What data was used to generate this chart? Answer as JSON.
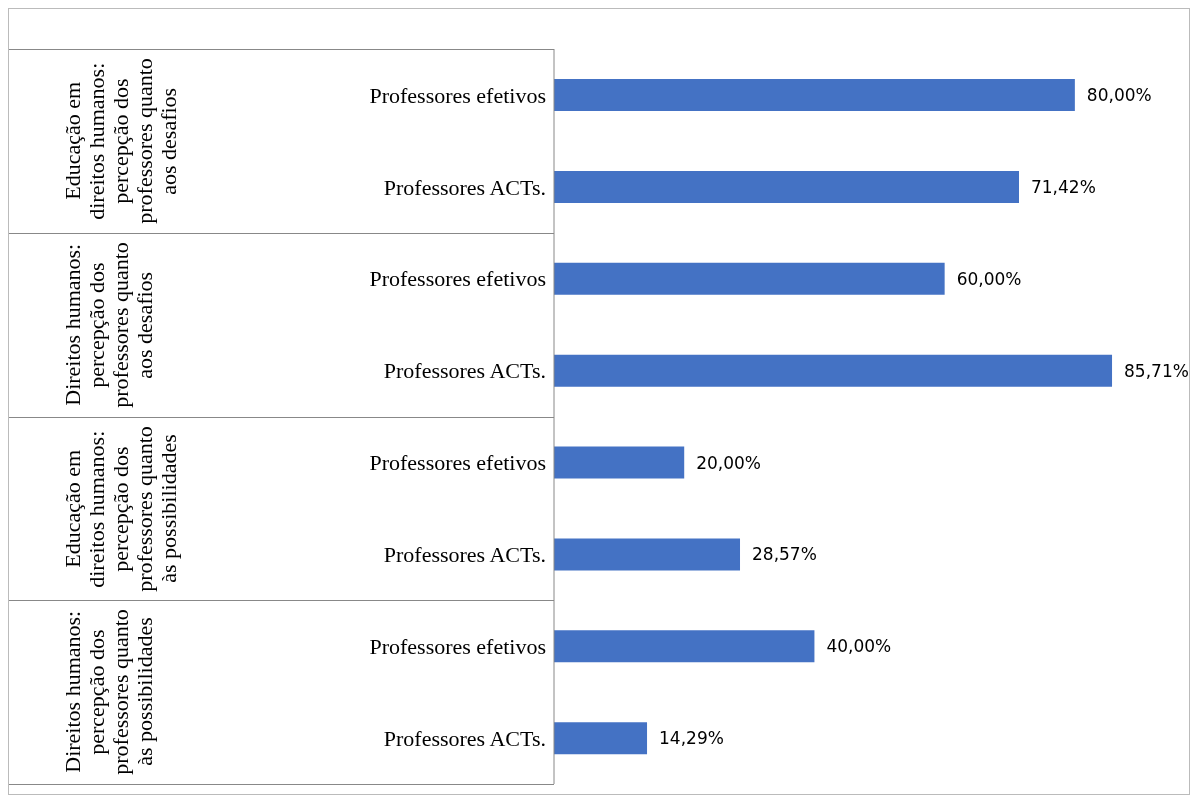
{
  "chart_data": {
    "type": "bar",
    "orientation": "horizontal",
    "categories": [
      "Professores efetivos",
      "Professores ACTs.",
      "Professores efetivos",
      "Professores ACTs.",
      "Professores efetivos",
      "Professores ACTs.",
      "Professores efetivos",
      "Professores ACTs."
    ],
    "values": [
      80,
      71.42,
      60,
      85.71,
      20,
      28.57,
      40,
      14.29
    ],
    "value_labels": [
      "80,00%",
      "71,42%",
      "60,00%",
      "85,71%",
      "20,00%",
      "28,57%",
      "40,00%",
      "14,29%"
    ],
    "color": "#4472c4",
    "annotations": [
      "Educação em direitos humanos: percepção dos professores quanto aos desafios",
      "Direitos humanos: percepção dos professores quanto aos desafios",
      "Educação em direitos humanos: percepção dos professores quanto às possibilidades",
      "Direitos humanos: percepção dos professores quanto às possibilidades"
    ],
    "grid": false,
    "legend": false
  }
}
